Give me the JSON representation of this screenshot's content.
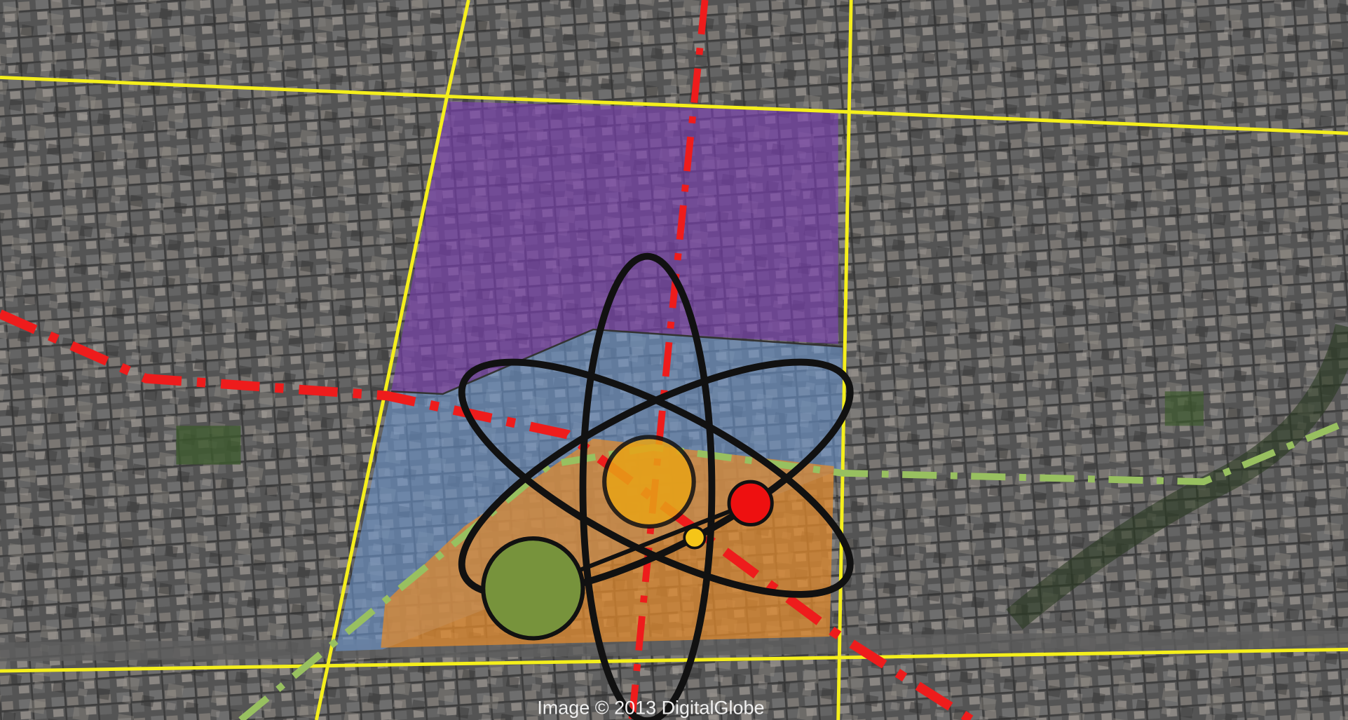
{
  "attribution": "Image © 2013 DigitalGlobe"
}
